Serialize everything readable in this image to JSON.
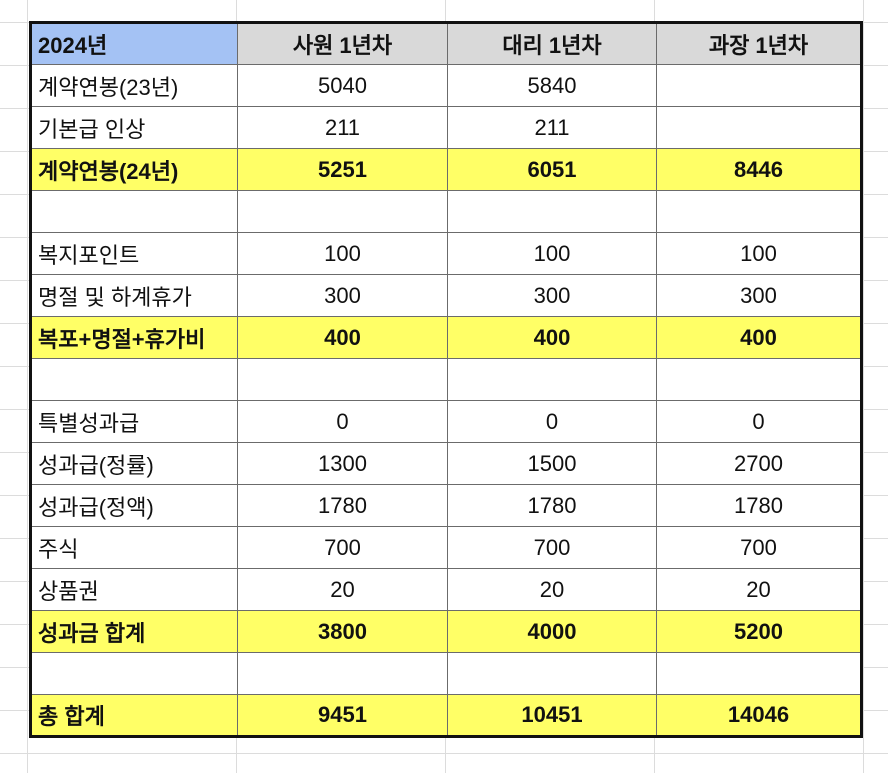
{
  "table": {
    "header": [
      "2024년",
      "사원 1년차",
      "대리 1년차",
      "과장 1년차"
    ],
    "rows": [
      {
        "label": "계약연봉(23년)",
        "values": [
          "5040",
          "5840",
          null
        ],
        "highlight": false
      },
      {
        "label": "기본급 인상",
        "values": [
          "211",
          "211",
          null
        ],
        "highlight": false
      },
      {
        "label": "계약연봉(24년)",
        "values": [
          "5251",
          "6051",
          "8446"
        ],
        "highlight": true
      },
      null,
      {
        "label": "복지포인트",
        "values": [
          "100",
          "100",
          "100"
        ],
        "highlight": false
      },
      {
        "label": "명절 및 하계휴가",
        "values": [
          "300",
          "300",
          "300"
        ],
        "highlight": false
      },
      {
        "label": "복포+명절+휴가비",
        "values": [
          "400",
          "400",
          "400"
        ],
        "highlight": true
      },
      null,
      {
        "label": "특별성과급",
        "values": [
          "0",
          "0",
          "0"
        ],
        "highlight": false
      },
      {
        "label": "성과급(정률)",
        "values": [
          "1300",
          "1500",
          "2700"
        ],
        "highlight": false
      },
      {
        "label": "성과급(정액)",
        "values": [
          "1780",
          "1780",
          "1780"
        ],
        "highlight": false
      },
      {
        "label": "주식",
        "values": [
          "700",
          "700",
          "700"
        ],
        "highlight": false
      },
      {
        "label": "상품권",
        "values": [
          "20",
          "20",
          "20"
        ],
        "highlight": false
      },
      {
        "label": "성과금 합계",
        "values": [
          "3800",
          "4000",
          "5200"
        ],
        "highlight": true
      },
      null,
      {
        "label": "총 합계",
        "values": [
          "9451",
          "10451",
          "14046"
        ],
        "highlight": true
      }
    ]
  }
}
